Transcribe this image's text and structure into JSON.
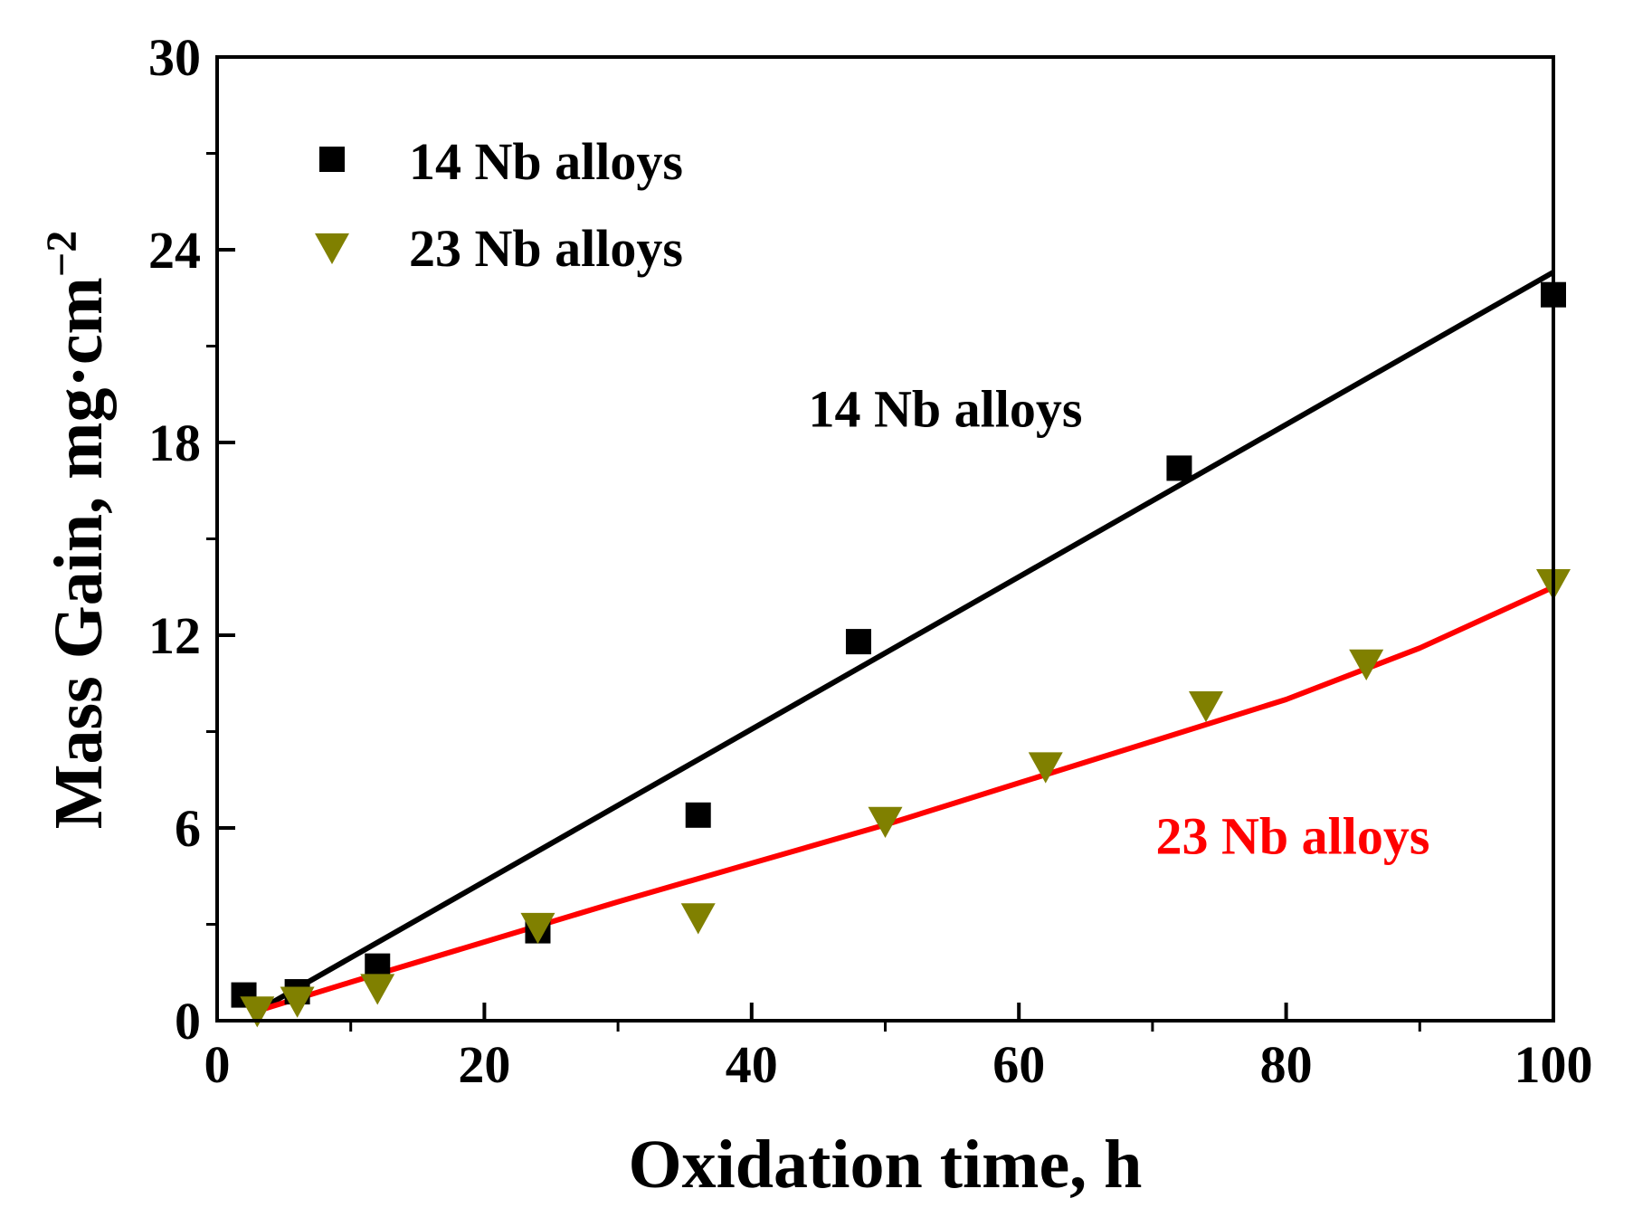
{
  "chart_data": {
    "type": "scatter",
    "title": "",
    "xlabel": "Oxidation time, h",
    "ylabel": "Mass Gain, mg·cm",
    "ylabel_superscript": "−2",
    "xlim": [
      0,
      100
    ],
    "ylim": [
      0,
      30
    ],
    "x_ticks": [
      0,
      20,
      40,
      60,
      80,
      100
    ],
    "x_tick_labels": [
      "0",
      "20",
      "40",
      "60",
      "80",
      "100"
    ],
    "y_ticks": [
      0,
      6,
      12,
      18,
      24,
      30
    ],
    "y_tick_labels": [
      "0",
      "6",
      "12",
      "18",
      "24",
      "30"
    ],
    "x_minor_ticks": [
      10,
      30,
      50,
      70,
      90
    ],
    "y_minor_ticks": [
      3,
      9,
      15,
      21,
      27
    ],
    "grid": false,
    "legend_position": "top-left",
    "series": [
      {
        "name": "14 Nb alloys",
        "marker": "square",
        "color": "#000000",
        "x": [
          2,
          6,
          12,
          24,
          36,
          48,
          72,
          100
        ],
        "y": [
          0.8,
          0.9,
          1.7,
          2.8,
          6.4,
          11.8,
          17.2,
          22.6
        ]
      },
      {
        "name": "23 Nb alloys",
        "marker": "triangle-down",
        "color": "#808000",
        "x": [
          3,
          6,
          12,
          24,
          36,
          50,
          62,
          74,
          86,
          100
        ],
        "y": [
          0.3,
          0.6,
          1.0,
          2.9,
          3.2,
          6.2,
          7.9,
          9.8,
          11.1,
          13.6
        ]
      }
    ],
    "fits": [
      {
        "name": "14 Nb fit",
        "color": "#000000",
        "x": [
          3,
          100
        ],
        "y": [
          0.3,
          23.3
        ]
      },
      {
        "name": "23 Nb fit",
        "color": "#ff0000",
        "x": [
          3,
          10,
          20,
          30,
          40,
          50,
          60,
          70,
          80,
          90,
          100
        ],
        "y": [
          0.3,
          1.2,
          2.45,
          3.7,
          4.9,
          6.1,
          7.4,
          8.7,
          10.0,
          11.6,
          13.5
        ]
      }
    ],
    "annotations": [
      {
        "text": "14 Nb alloys",
        "color": "#000000",
        "x": 54.5,
        "y": 18.5
      },
      {
        "text": "23 Nb alloys",
        "color": "#ff0000",
        "x": 80.5,
        "y": 5.2
      }
    ]
  }
}
